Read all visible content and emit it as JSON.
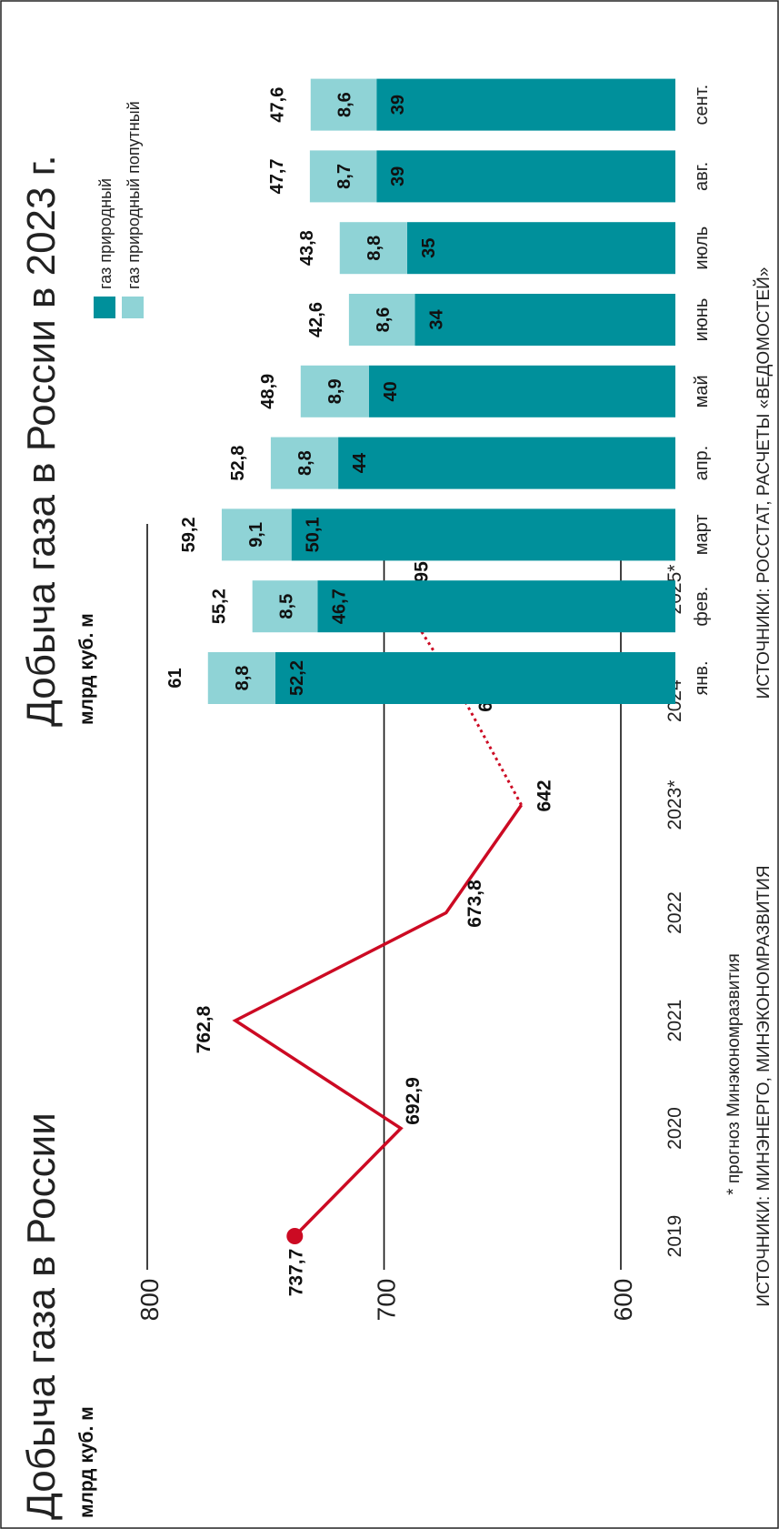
{
  "chart_data": [
    {
      "type": "line",
      "title": "Добыча газа в России",
      "unit_label": "млрд куб. м",
      "x": [
        "2019",
        "2020",
        "2021",
        "2022",
        "2023*",
        "2024*",
        "2025*"
      ],
      "values": [
        737.7,
        692.9,
        762.8,
        673.8,
        642,
        666.7,
        695.4
      ],
      "value_labels": [
        "737,7",
        "692,9",
        "762,8",
        "673,8",
        "642",
        "666,7",
        "695,4"
      ],
      "forecast_from_index": 4,
      "ylim": [
        600,
        800
      ],
      "y_ticks": [
        {
          "value": 600,
          "label": "600"
        },
        {
          "value": 700,
          "label": "700"
        },
        {
          "value": 800,
          "label": "800"
        }
      ],
      "footnote": "* прогноз Минэкономразвития",
      "source": "ИСТОЧНИКИ: МИНЭНЕРГО, МИНЭКОНОМРАЗВИТИЯ",
      "colors": {
        "line": "#cc0a23"
      }
    },
    {
      "type": "bar",
      "stacked": true,
      "title": "Добыча газа в России в 2023 г.",
      "unit_label": "млрд куб. м",
      "categories": [
        "янв.",
        "фев.",
        "март",
        "апр.",
        "май",
        "июнь",
        "июль",
        "авг.",
        "сент."
      ],
      "series": [
        {
          "name": "газ природный",
          "values": [
            52.2,
            46.7,
            50.1,
            44,
            40,
            34,
            35,
            39,
            39
          ],
          "labels": [
            "52,2",
            "46,7",
            "50,1",
            "44",
            "40",
            "34",
            "35",
            "39",
            "39"
          ]
        },
        {
          "name": "газ природный попутный",
          "values": [
            8.8,
            8.5,
            9.1,
            8.8,
            8.9,
            8.6,
            8.8,
            8.7,
            8.6
          ],
          "labels": [
            "8,8",
            "8,5",
            "9,1",
            "8,8",
            "8,9",
            "8,6",
            "8,8",
            "8,7",
            "8,6"
          ]
        }
      ],
      "totals": [
        61,
        55.2,
        59.2,
        52.8,
        48.9,
        42.6,
        43.8,
        47.7,
        47.6
      ],
      "total_labels": [
        "61",
        "55,2",
        "59,2",
        "52,8",
        "48,9",
        "42,6",
        "43,8",
        "47,7",
        "47,6"
      ],
      "legend_position": "top",
      "source": "ИСТОЧНИКИ: РОССТАТ, РАСЧЕТЫ «ВЕДОМОСТЕЙ»",
      "colors": {
        "natural": "#00909b",
        "associated": "#8fd3d6"
      }
    }
  ]
}
